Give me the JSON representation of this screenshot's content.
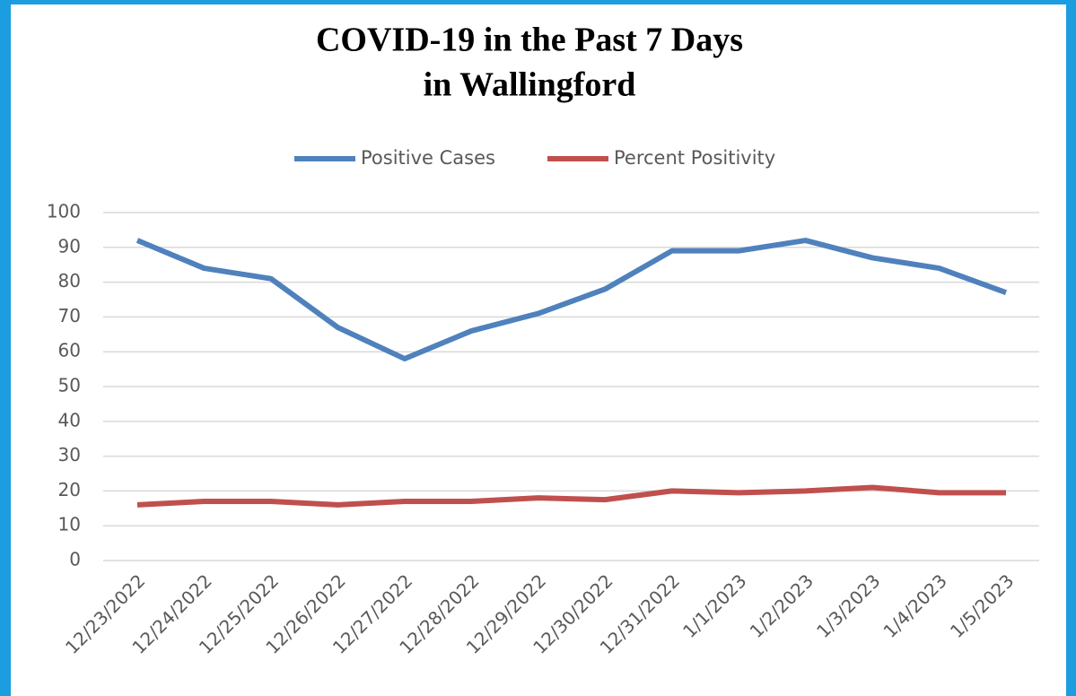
{
  "chart_data": {
    "type": "line",
    "title": [
      "COVID-19 in the Past 7 Days",
      "in Wallingford"
    ],
    "categories": [
      "12/23/2022",
      "12/24/2022",
      "12/25/2022",
      "12/26/2022",
      "12/27/2022",
      "12/28/2022",
      "12/29/2022",
      "12/30/2022",
      "12/31/2022",
      "1/1/2023",
      "1/2/2023",
      "1/3/2023",
      "1/4/2023",
      "1/5/2023"
    ],
    "series": [
      {
        "name": "Positive Cases",
        "color": "#4f81bd",
        "values": [
          92,
          84,
          81,
          67,
          58,
          66,
          71,
          78,
          89,
          89,
          92,
          87,
          84,
          77
        ]
      },
      {
        "name": "Percent Positivity",
        "color": "#c0504d",
        "values": [
          16,
          17,
          17,
          16,
          17,
          17,
          18,
          17.5,
          20,
          19.5,
          20,
          21,
          19.5,
          19.5
        ]
      }
    ],
    "ylim": [
      0,
      100
    ],
    "yticks": [
      0,
      10,
      20,
      30,
      40,
      50,
      60,
      70,
      80,
      90,
      100
    ],
    "grid": true,
    "legend": "top"
  }
}
